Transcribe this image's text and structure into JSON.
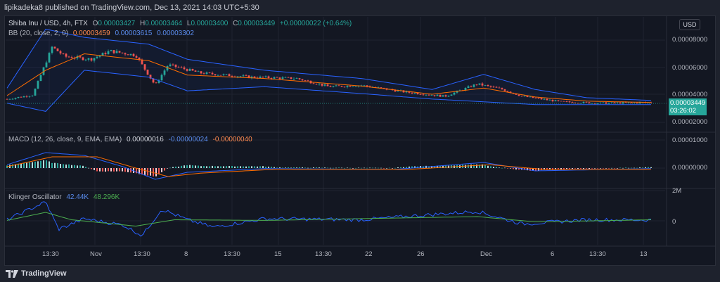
{
  "header": {
    "publisher_line": "lipikadeka8 published on TradingView.com, Dec 13, 2021 14:03 UTC+5:30"
  },
  "main_legend": {
    "symbol": "Shiba Inu / USD, 4h, FTX",
    "o_label": "O",
    "o": "0.00003427",
    "h_label": "H",
    "h": "0.00003464",
    "l_label": "L",
    "l": "0.00003400",
    "c_label": "C",
    "c": "0.00003449",
    "change": "+0.00000022 (+0.64%)"
  },
  "bb_legend": {
    "name": "BB (20, close, 2, 0)",
    "basis": "0.00003459",
    "upper": "0.00003615",
    "lower": "0.00003302"
  },
  "macd_legend": {
    "name": "MACD (12, 26, close, 9, EMA, EMA)",
    "hist": "0.00000016",
    "macd": "-0.00000024",
    "signal": "-0.00000040"
  },
  "klinger_legend": {
    "name": "Klinger Oscillator",
    "kvo": "42.44K",
    "signal": "48.296K"
  },
  "currency_button": "USD",
  "price_axis": [
    "0.00008000",
    "0.00006000",
    "0.00004000",
    "0.00002000"
  ],
  "current_price": {
    "price": "0.00003449",
    "countdown": "03:26:02"
  },
  "macd_axis": [
    "0.00001000",
    "0.00000000"
  ],
  "klinger_axis": [
    "2M",
    "0"
  ],
  "time_axis": [
    "13:30",
    "Nov",
    "13:30",
    "8",
    "13:30",
    "15",
    "13:30",
    "22",
    "26",
    "Dec",
    "6",
    "13:30",
    "13"
  ],
  "brand": "TradingView",
  "colors": {
    "up": "#26a69a",
    "down": "#ef5350",
    "bb_band": "#2962ff",
    "bb_basis": "#ff6d00",
    "macd": "#2962ff",
    "signal": "#ff6d00",
    "kvo": "#2962ff",
    "kvo_signal": "#4caf50"
  },
  "chart_data": {
    "type": "candlestick",
    "title": "Shiba Inu / USD, 4h, FTX",
    "x_range": [
      "Oct 28",
      "Dec 13"
    ],
    "ylim": [
      1.5e-05,
      9.5e-05
    ],
    "close_anchors": [
      {
        "t": 0.0,
        "v": 3.7e-05
      },
      {
        "t": 0.04,
        "v": 4e-05
      },
      {
        "t": 0.07,
        "v": 7.5e-05
      },
      {
        "t": 0.09,
        "v": 6.8e-05
      },
      {
        "t": 0.13,
        "v": 6.6e-05
      },
      {
        "t": 0.16,
        "v": 7.2e-05
      },
      {
        "t": 0.2,
        "v": 6.9e-05
      },
      {
        "t": 0.23,
        "v": 4.7e-05
      },
      {
        "t": 0.25,
        "v": 6.2e-05
      },
      {
        "t": 0.3,
        "v": 5.6e-05
      },
      {
        "t": 0.38,
        "v": 5.3e-05
      },
      {
        "t": 0.45,
        "v": 5.2e-05
      },
      {
        "t": 0.5,
        "v": 4.6e-05
      },
      {
        "t": 0.55,
        "v": 4.7e-05
      },
      {
        "t": 0.62,
        "v": 4.2e-05
      },
      {
        "t": 0.68,
        "v": 3.9e-05
      },
      {
        "t": 0.73,
        "v": 4.8e-05
      },
      {
        "t": 0.77,
        "v": 4.4e-05
      },
      {
        "t": 0.8,
        "v": 3.9e-05
      },
      {
        "t": 0.86,
        "v": 3.5e-05
      },
      {
        "t": 0.92,
        "v": 3.4e-05
      },
      {
        "t": 1.0,
        "v": 3.45e-05
      }
    ],
    "bb_upper_anchors": [
      {
        "t": 0.0,
        "v": 4.5e-05
      },
      {
        "t": 0.06,
        "v": 8.8e-05
      },
      {
        "t": 0.12,
        "v": 8.2e-05
      },
      {
        "t": 0.22,
        "v": 7.7e-05
      },
      {
        "t": 0.28,
        "v": 6.6e-05
      },
      {
        "t": 0.4,
        "v": 5.8e-05
      },
      {
        "t": 0.55,
        "v": 5.2e-05
      },
      {
        "t": 0.66,
        "v": 4.4e-05
      },
      {
        "t": 0.74,
        "v": 5.5e-05
      },
      {
        "t": 0.82,
        "v": 4.4e-05
      },
      {
        "t": 0.9,
        "v": 3.8e-05
      },
      {
        "t": 1.0,
        "v": 3.6e-05
      }
    ],
    "bb_lower_anchors": [
      {
        "t": 0.0,
        "v": 3.4e-05
      },
      {
        "t": 0.06,
        "v": 2.8e-05
      },
      {
        "t": 0.12,
        "v": 5.8e-05
      },
      {
        "t": 0.22,
        "v": 5.3e-05
      },
      {
        "t": 0.28,
        "v": 4.3e-05
      },
      {
        "t": 0.4,
        "v": 4.6e-05
      },
      {
        "t": 0.55,
        "v": 4.1e-05
      },
      {
        "t": 0.66,
        "v": 3.7e-05
      },
      {
        "t": 0.74,
        "v": 3.5e-05
      },
      {
        "t": 0.82,
        "v": 3.3e-05
      },
      {
        "t": 0.9,
        "v": 3.3e-05
      },
      {
        "t": 1.0,
        "v": 3.3e-05
      }
    ],
    "macd_anchors": [
      {
        "t": 0.0,
        "v": 1.2e-06
      },
      {
        "t": 0.06,
        "v": 5.5e-06
      },
      {
        "t": 0.12,
        "v": 4.5e-06
      },
      {
        "t": 0.18,
        "v": 5e-07
      },
      {
        "t": 0.23,
        "v": -4e-06
      },
      {
        "t": 0.28,
        "v": -1.5e-06
      },
      {
        "t": 0.4,
        "v": -2e-07
      },
      {
        "t": 0.6,
        "v": -5e-07
      },
      {
        "t": 0.74,
        "v": 2e-06
      },
      {
        "t": 0.82,
        "v": -1e-06
      },
      {
        "t": 1.0,
        "v": -2e-07
      }
    ],
    "signal_anchors": [
      {
        "t": 0.0,
        "v": 5e-07
      },
      {
        "t": 0.07,
        "v": 4e-06
      },
      {
        "t": 0.14,
        "v": 4e-06
      },
      {
        "t": 0.2,
        "v": 0.0
      },
      {
        "t": 0.25,
        "v": -3e-06
      },
      {
        "t": 0.3,
        "v": -1.8e-06
      },
      {
        "t": 0.42,
        "v": -4e-07
      },
      {
        "t": 0.62,
        "v": -5e-07
      },
      {
        "t": 0.75,
        "v": 1.2e-06
      },
      {
        "t": 0.84,
        "v": -6e-07
      },
      {
        "t": 1.0,
        "v": -4e-07
      }
    ],
    "kvo_anchors": [
      {
        "t": 0.0,
        "v": 0.05
      },
      {
        "t": 0.06,
        "v": 0.9
      },
      {
        "t": 0.08,
        "v": -0.4
      },
      {
        "t": 0.12,
        "v": 0.1
      },
      {
        "t": 0.18,
        "v": -0.2
      },
      {
        "t": 0.21,
        "v": -0.7
      },
      {
        "t": 0.24,
        "v": 0.55
      },
      {
        "t": 0.28,
        "v": 0.05
      },
      {
        "t": 0.32,
        "v": -0.3
      },
      {
        "t": 0.4,
        "v": 0.1
      },
      {
        "t": 0.55,
        "v": 0.05
      },
      {
        "t": 0.73,
        "v": 0.45
      },
      {
        "t": 0.8,
        "v": -0.15
      },
      {
        "t": 0.9,
        "v": 0.05
      },
      {
        "t": 1.0,
        "v": 0.04
      }
    ],
    "kvo_signal_anchors": [
      {
        "t": 0.0,
        "v": 0.02
      },
      {
        "t": 0.06,
        "v": 0.4
      },
      {
        "t": 0.1,
        "v": 0.05
      },
      {
        "t": 0.2,
        "v": -0.25
      },
      {
        "t": 0.26,
        "v": 0.05
      },
      {
        "t": 0.4,
        "v": 0.02
      },
      {
        "t": 0.73,
        "v": 0.2
      },
      {
        "t": 0.82,
        "v": -0.05
      },
      {
        "t": 1.0,
        "v": 0.05
      }
    ]
  }
}
